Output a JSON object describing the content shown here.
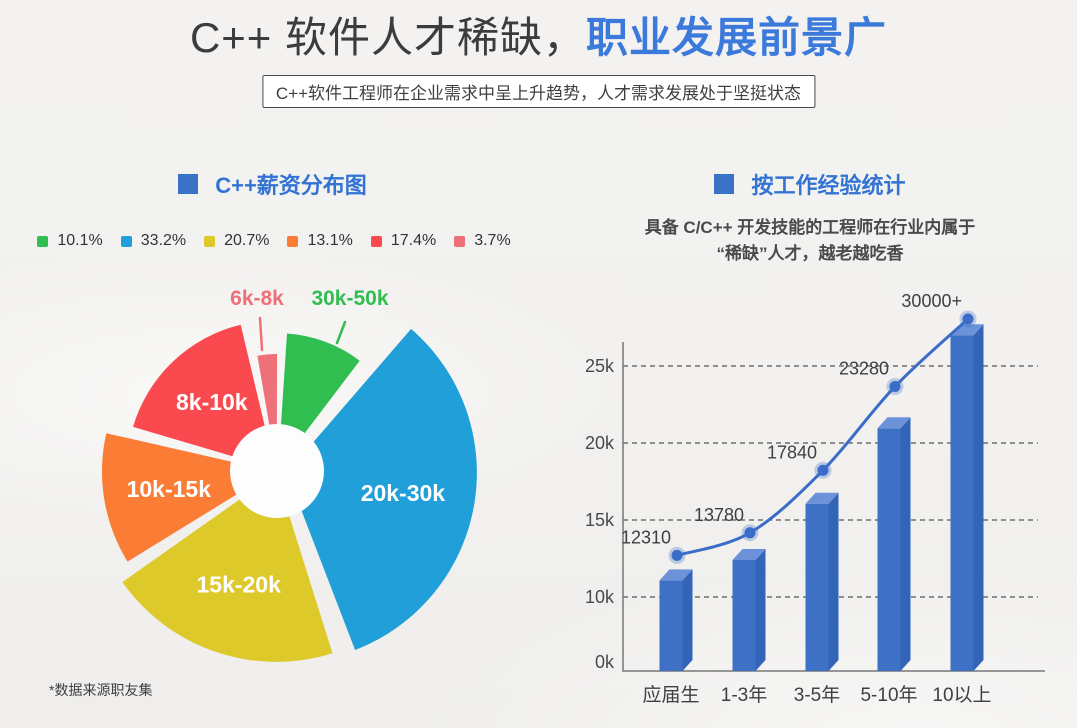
{
  "header": {
    "title_dark": "C++ 软件人才稀缺，",
    "title_blue": "职业发展前景广",
    "subtitle": "C++软件工程师在企业需求中呈上升趋势，人才需求发展处于坚挺状态"
  },
  "bar_section": {
    "desc_line1": "具备 C/C++ 开发技能的工程师在行业内属于",
    "desc_line2": "“稀缺”人才，越老越吃香"
  },
  "colors": {
    "title_blue": "#3b79db",
    "header_blue": "#3273d4",
    "header_square_blue": "#3a72c8",
    "text_dark": "#3f3f3f",
    "bar_front": "#3e71c6",
    "bar_side": "#3464b8",
    "bar_top": "#6c92d9",
    "line_blue": "#3a6cc8",
    "axis_gray": "#777777",
    "grid_gray": "#555555"
  },
  "chart_data": [
    {
      "type": "pie",
      "title": "C++薪资分布图",
      "donut": true,
      "unit": "%",
      "legend_position": "top",
      "source_note": "*数据来源职友集",
      "slices": [
        {
          "label": "30k-50k",
          "value": 10.1,
          "color": "#2fbe4f",
          "label_placement": "callout"
        },
        {
          "label": "20k-30k",
          "value": 33.2,
          "color": "#219fd9",
          "label_placement": "inside"
        },
        {
          "label": "15k-20k",
          "value": 20.7,
          "color": "#ddc929",
          "label_placement": "inside"
        },
        {
          "label": "10k-15k",
          "value": 13.1,
          "color": "#fb7c35",
          "label_placement": "inside"
        },
        {
          "label": "8k-10k",
          "value": 17.4,
          "color": "#fa4a50",
          "label_placement": "inside"
        },
        {
          "label": "6k-8k",
          "value": 3.7,
          "color": "#ee7078",
          "label_placement": "callout"
        }
      ]
    },
    {
      "type": "bar",
      "title": "按工作经验统计",
      "categories": [
        "应届生",
        "1-3年",
        "3-5年",
        "5-10年",
        "10以上"
      ],
      "series": [
        {
          "type": "bar",
          "values": [
            12310,
            13780,
            17840,
            23280,
            30000
          ]
        },
        {
          "type": "line",
          "values": [
            12310,
            13780,
            17840,
            23280,
            30000
          ],
          "point_labels": [
            "12310",
            "13780",
            "17840",
            "23280",
            "30000+"
          ]
        }
      ],
      "yticks": [
        {
          "label": "0k",
          "value": 0
        },
        {
          "label": "10k",
          "value": 10000
        },
        {
          "label": "15k",
          "value": 15000
        },
        {
          "label": "20k",
          "value": 20000
        },
        {
          "label": "25k",
          "value": 25000
        }
      ],
      "grid": "dashed",
      "ylim": [
        0,
        28000
      ]
    }
  ]
}
